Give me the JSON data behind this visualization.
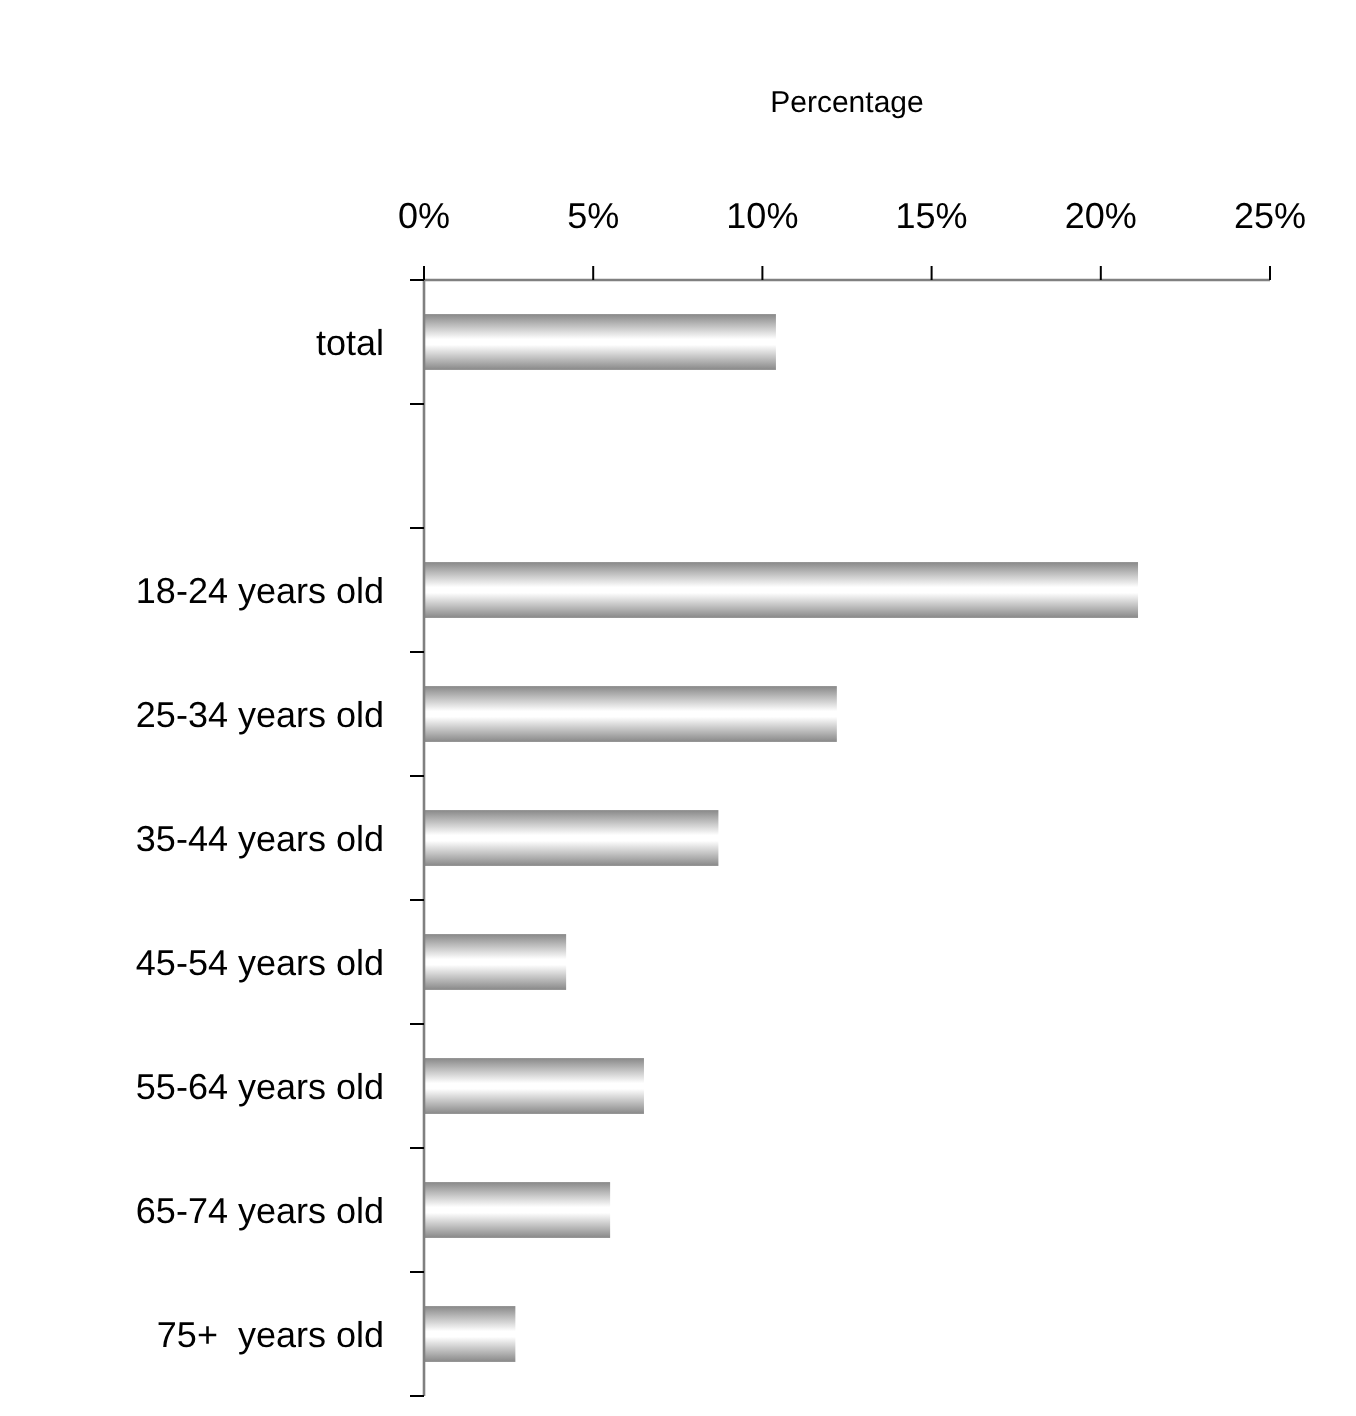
{
  "chart_data": {
    "type": "bar",
    "orientation": "horizontal",
    "xlabel": "Percentage",
    "categories": [
      "total",
      null,
      "18-24 years old",
      "25-34 years old",
      "35-44 years old",
      "45-54 years old",
      "55-64 years old",
      "65-74 years old",
      "75+  years old"
    ],
    "values": [
      10.4,
      null,
      21.1,
      12.2,
      8.7,
      4.2,
      6.5,
      5.5,
      2.7
    ],
    "color": "#888888",
    "xlim": [
      0,
      25
    ],
    "xticks": [
      {
        "value": 0,
        "label": "0%"
      },
      {
        "value": 5,
        "label": "5%"
      },
      {
        "value": 10,
        "label": "10%"
      },
      {
        "value": 15,
        "label": "15%"
      },
      {
        "value": 20,
        "label": "20%"
      },
      {
        "value": 25,
        "label": "25%"
      }
    ],
    "grid": false
  }
}
